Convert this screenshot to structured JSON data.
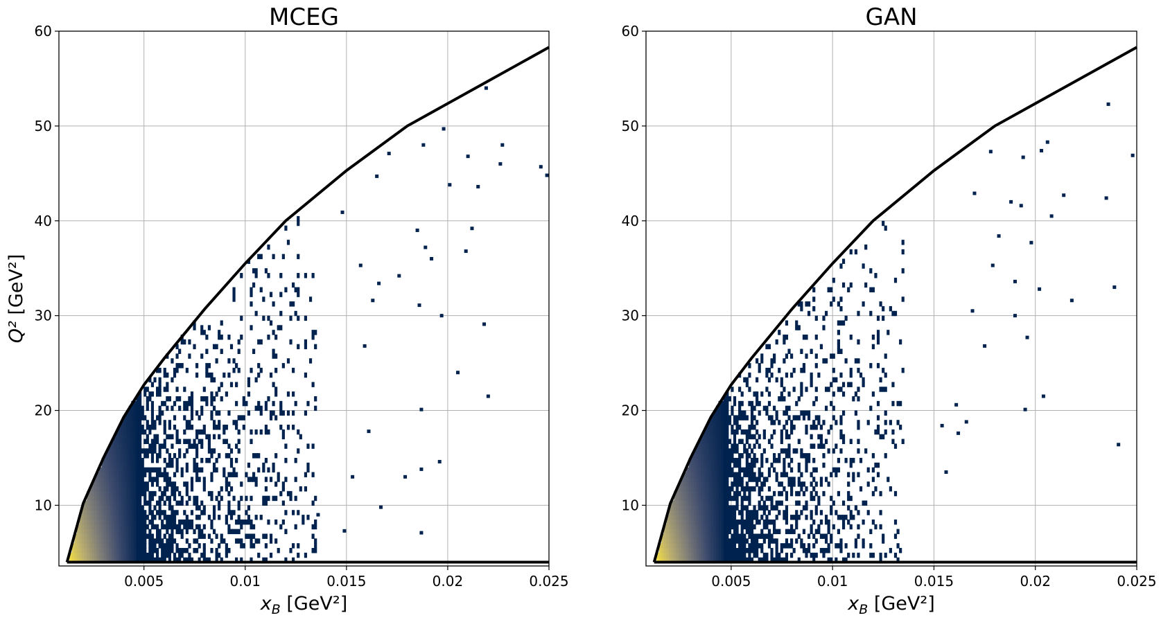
{
  "chart_data": [
    {
      "type": "heatmap",
      "title": "MCEG",
      "xlabel": "x_B [GeV²]",
      "ylabel": "Q² [GeV²]",
      "xlim": [
        0.0008,
        0.025
      ],
      "ylim": [
        3.6,
        60
      ],
      "xticks": [
        "0.005",
        "0.01",
        "0.015",
        "0.02",
        "0.025"
      ],
      "xtick_values": [
        0.005,
        0.01,
        0.015,
        0.02,
        0.025
      ],
      "yticks": [
        "10",
        "20",
        "30",
        "40",
        "50",
        "60"
      ],
      "ytick_values": [
        10,
        20,
        30,
        40,
        50,
        60
      ],
      "grid": true,
      "colormap": [
        "#00224e",
        "#3b496c",
        "#7c7b78",
        "#bcaf6f",
        "#fee838"
      ],
      "boundary_upper": {
        "x": [
          0.0012,
          0.002,
          0.003,
          0.004,
          0.005,
          0.006,
          0.008,
          0.01,
          0.012,
          0.015,
          0.018,
          0.025
        ],
        "y": [
          4,
          10.2,
          15,
          19.3,
          22.7,
          25.5,
          30.7,
          35.5,
          40,
          45.3,
          50,
          58.3
        ]
      },
      "boundary_lower": {
        "x": [
          0.0012,
          0.025
        ],
        "y": [
          4,
          4
        ]
      },
      "sparse_points": [
        [
          0.0198,
          49.7
        ],
        [
          0.0219,
          54.0
        ],
        [
          0.0227,
          48.0
        ],
        [
          0.0246,
          45.7
        ],
        [
          0.0215,
          43.6
        ],
        [
          0.0188,
          48.0
        ],
        [
          0.021,
          46.8
        ],
        [
          0.0226,
          46.0
        ],
        [
          0.0249,
          44.8
        ],
        [
          0.0201,
          43.8
        ],
        [
          0.0185,
          39.0
        ],
        [
          0.0189,
          37.2
        ],
        [
          0.0192,
          36.0
        ],
        [
          0.0209,
          36.8
        ],
        [
          0.0212,
          39.2
        ],
        [
          0.0176,
          34.2
        ],
        [
          0.0186,
          31.1
        ],
        [
          0.0197,
          30.0
        ],
        [
          0.0218,
          29.1
        ],
        [
          0.0205,
          24.0
        ],
        [
          0.022,
          21.5
        ],
        [
          0.0187,
          20.1
        ],
        [
          0.0161,
          17.8
        ],
        [
          0.0196,
          14.6
        ],
        [
          0.0187,
          13.8
        ],
        [
          0.0179,
          13.0
        ],
        [
          0.0153,
          13.0
        ],
        [
          0.0167,
          9.8
        ],
        [
          0.0149,
          7.3
        ],
        [
          0.0187,
          7.1
        ],
        [
          0.0136,
          9.0
        ],
        [
          0.0157,
          35.3
        ],
        [
          0.0166,
          33.4
        ],
        [
          0.0163,
          31.6
        ],
        [
          0.0159,
          26.8
        ],
        [
          0.0148,
          40.9
        ],
        [
          0.0171,
          47.1
        ],
        [
          0.0165,
          44.7
        ]
      ]
    },
    {
      "type": "heatmap",
      "title": "GAN",
      "xlabel": "x_B [GeV²]",
      "ylabel": "",
      "xlim": [
        0.0008,
        0.025
      ],
      "ylim": [
        3.6,
        60
      ],
      "xticks": [
        "0.005",
        "0.01",
        "0.015",
        "0.02",
        "0.025"
      ],
      "xtick_values": [
        0.005,
        0.01,
        0.015,
        0.02,
        0.025
      ],
      "yticks": [
        "10",
        "20",
        "30",
        "40",
        "50",
        "60"
      ],
      "ytick_values": [
        10,
        20,
        30,
        40,
        50,
        60
      ],
      "grid": true,
      "colormap": [
        "#00224e",
        "#3b496c",
        "#7c7b78",
        "#bcaf6f",
        "#fee838"
      ],
      "boundary_upper": {
        "x": [
          0.0012,
          0.002,
          0.003,
          0.004,
          0.005,
          0.006,
          0.008,
          0.01,
          0.012,
          0.015,
          0.018,
          0.025
        ],
        "y": [
          4,
          10.2,
          15,
          19.3,
          22.7,
          25.5,
          30.7,
          35.5,
          40,
          45.3,
          50,
          58.3
        ]
      },
      "boundary_lower": {
        "x": [
          0.0012,
          0.025
        ],
        "y": [
          4,
          4
        ]
      },
      "sparse_points": [
        [
          0.0236,
          52.3
        ],
        [
          0.0248,
          46.9
        ],
        [
          0.0206,
          48.3
        ],
        [
          0.0203,
          47.4
        ],
        [
          0.0194,
          46.7
        ],
        [
          0.0178,
          47.3
        ],
        [
          0.0214,
          42.7
        ],
        [
          0.0235,
          42.4
        ],
        [
          0.0208,
          40.5
        ],
        [
          0.0198,
          37.7
        ],
        [
          0.0202,
          32.8
        ],
        [
          0.019,
          33.6
        ],
        [
          0.0218,
          31.6
        ],
        [
          0.019,
          30.0
        ],
        [
          0.0196,
          27.7
        ],
        [
          0.0204,
          21.5
        ],
        [
          0.0195,
          20.1
        ],
        [
          0.0175,
          26.8
        ],
        [
          0.0161,
          20.6
        ],
        [
          0.0162,
          17.6
        ],
        [
          0.0154,
          18.4
        ],
        [
          0.0166,
          18.8
        ],
        [
          0.0156,
          13.5
        ],
        [
          0.0239,
          33.0
        ],
        [
          0.0241,
          16.4
        ],
        [
          0.0179,
          35.3
        ],
        [
          0.0169,
          30.5
        ],
        [
          0.0182,
          38.4
        ],
        [
          0.0188,
          42.0
        ],
        [
          0.017,
          42.9
        ],
        [
          0.0193,
          41.6
        ]
      ]
    }
  ]
}
